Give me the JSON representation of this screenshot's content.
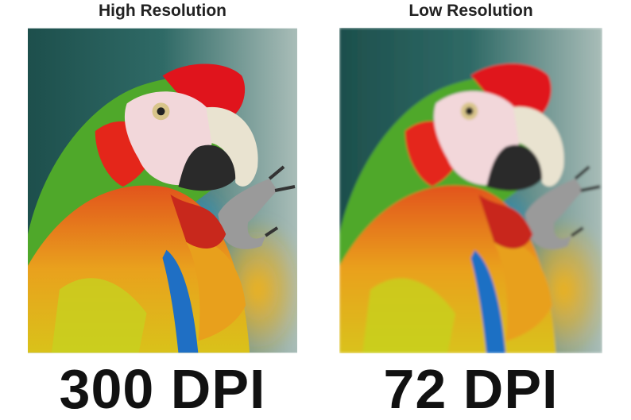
{
  "panels": [
    {
      "title": "High Resolution",
      "label": "300 DPI"
    },
    {
      "title": "Low Resolution",
      "label": "72 DPI"
    }
  ]
}
